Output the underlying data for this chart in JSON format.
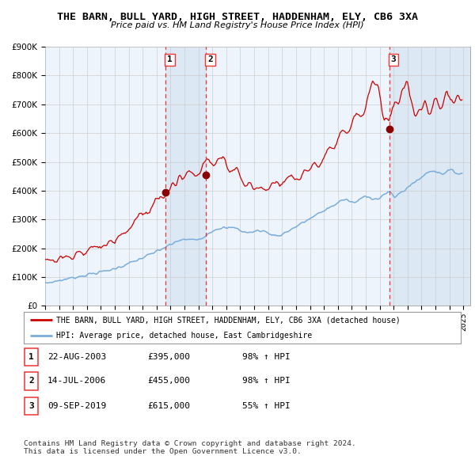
{
  "title": "THE BARN, BULL YARD, HIGH STREET, HADDENHAM, ELY, CB6 3XA",
  "subtitle": "Price paid vs. HM Land Registry's House Price Index (HPI)",
  "ylim": [
    0,
    900000
  ],
  "yticks": [
    0,
    100000,
    200000,
    300000,
    400000,
    500000,
    600000,
    700000,
    800000,
    900000
  ],
  "ytick_labels": [
    "£0",
    "£100K",
    "£200K",
    "£300K",
    "£400K",
    "£500K",
    "£600K",
    "£700K",
    "£800K",
    "£900K"
  ],
  "sale_dates": [
    "2003-08-22",
    "2006-07-14",
    "2019-09-09"
  ],
  "sale_prices": [
    395000,
    455000,
    615000
  ],
  "sale_labels": [
    "1",
    "2",
    "3"
  ],
  "red_line_color": "#cc0000",
  "blue_line_color": "#7aaddb",
  "shading_color": "#dce9f5",
  "dashed_line_color": "#ee3333",
  "marker_color": "#880000",
  "grid_color": "#cccccc",
  "legend_entries": [
    "THE BARN, BULL YARD, HIGH STREET, HADDENHAM, ELY, CB6 3XA (detached house)",
    "HPI: Average price, detached house, East Cambridgeshire"
  ],
  "table_rows": [
    [
      "1",
      "22-AUG-2003",
      "£395,000",
      "98% ↑ HPI"
    ],
    [
      "2",
      "14-JUL-2006",
      "£455,000",
      "98% ↑ HPI"
    ],
    [
      "3",
      "09-SEP-2019",
      "£615,000",
      "55% ↑ HPI"
    ]
  ],
  "footnote1": "Contains HM Land Registry data © Crown copyright and database right 2024.",
  "footnote2": "This data is licensed under the Open Government Licence v3.0."
}
